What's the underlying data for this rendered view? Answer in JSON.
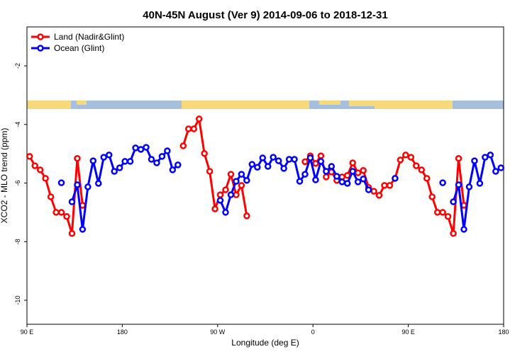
{
  "chart_data": {
    "type": "line",
    "title": "40N-45N August (Ver 9)   2014-09-06 to 2018-12-31",
    "x_label": "Longitude (deg E)",
    "y_label": "XCO2 - MLO trend (ppm)",
    "x": [
      92.5,
      97.5,
      102.5,
      107.5,
      112.5,
      117.5,
      122.5,
      127.5,
      132.5,
      137.5,
      142.5,
      147.5,
      152.5,
      157.5,
      162.5,
      167.5,
      172.5,
      177.5,
      182.5,
      187.5,
      192.5,
      197.5,
      202.5,
      207.5,
      212.5,
      217.5,
      222.5,
      227.5,
      232.5,
      237.5,
      242.5,
      247.5,
      252.5,
      257.5,
      262.5,
      267.5,
      272.5,
      277.5,
      282.5,
      287.5,
      292.5,
      297.5,
      302.5,
      307.5,
      312.5,
      317.5,
      322.5,
      327.5,
      332.5,
      337.5,
      342.5,
      347.5,
      352.5,
      357.5,
      362.5,
      367.5,
      372.5,
      377.5,
      382.5,
      387.5,
      392.5,
      397.5,
      402.5,
      407.5,
      412.5,
      417.5,
      422.5,
      427.5,
      432.5,
      437.5,
      442.5,
      447.5,
      452.5,
      457.5,
      462.5,
      467.5,
      472.5,
      477.5,
      482.5,
      487.5,
      492.5,
      497.5,
      502.5,
      507.5,
      512.5,
      517.5,
      522.5,
      527.5,
      532.5,
      537.5
    ],
    "series": [
      {
        "name": "Land (Nadir&Glint)",
        "color": "#ff0000",
        "values": [
          -5.09,
          -5.41,
          -5.55,
          -5.84,
          -6.47,
          -7.0,
          -7.0,
          -7.14,
          -7.72,
          -5.16,
          -6.76,
          null,
          null,
          null,
          null,
          null,
          null,
          null,
          null,
          null,
          null,
          null,
          null,
          null,
          null,
          null,
          null,
          null,
          null,
          -4.73,
          -4.15,
          -4.15,
          -3.81,
          -4.99,
          -5.6,
          -6.88,
          -6.4,
          -6.23,
          -5.7,
          -6.4,
          -6.08,
          -7.12,
          null,
          null,
          null,
          null,
          null,
          null,
          null,
          null,
          null,
          null,
          -5.27,
          -5.07,
          -5.33,
          -5.07,
          -5.79,
          -5.62,
          -5.91,
          -5.79,
          -5.74,
          -5.31,
          -5.65,
          -5.57,
          -6.15,
          -6.28,
          -6.42,
          -6.08,
          -6.08,
          -5.84,
          -5.21,
          -5.04,
          -5.12,
          -5.41,
          -5.55,
          -5.84,
          -6.47,
          -7.0,
          -7.0,
          -7.14,
          -7.72,
          -5.16,
          -6.76,
          null,
          null,
          null,
          null,
          null,
          null,
          null
        ]
      },
      {
        "name": "Ocean (Glint)",
        "color": "#0000ff",
        "values": [
          null,
          null,
          null,
          null,
          null,
          null,
          -5.99,
          null,
          -6.64,
          -6.06,
          -7.58,
          -6.13,
          -5.24,
          -6.01,
          -5.12,
          -5.04,
          -5.6,
          -5.48,
          -5.26,
          -5.26,
          -4.8,
          -4.85,
          -4.78,
          -5.19,
          -5.31,
          -5.09,
          -4.9,
          -5.55,
          -5.38,
          null,
          null,
          null,
          null,
          null,
          null,
          null,
          -6.59,
          -7.0,
          -6.4,
          -5.94,
          -5.7,
          -5.91,
          -5.36,
          -5.46,
          -5.14,
          -5.43,
          -5.12,
          -5.24,
          -5.5,
          -5.19,
          -5.19,
          -5.94,
          -5.7,
          -5.14,
          -5.89,
          -5.26,
          -5.6,
          -5.43,
          -5.77,
          -5.96,
          -6.01,
          -5.6,
          -5.96,
          -5.86,
          -6.23,
          null,
          null,
          null,
          null,
          -5.84,
          null,
          null,
          null,
          null,
          null,
          null,
          null,
          null,
          -5.99,
          null,
          -6.64,
          -6.06,
          -7.58,
          -6.13,
          -5.24,
          -6.01,
          -5.12,
          -5.04,
          -5.6,
          -5.48
        ]
      }
    ],
    "xlim": [
      90,
      540
    ],
    "ylim": [
      -10.82,
      -0.67
    ],
    "xticks": [
      {
        "value": 90,
        "label": "90 E"
      },
      180,
      {
        "value": 270,
        "label": "90 W"
      },
      {
        "value": 360,
        "label": "0"
      },
      {
        "value": 450,
        "label": "90 E"
      },
      {
        "value": 540,
        "label": "180"
      }
    ],
    "yticks": [
      -2,
      -4,
      -6,
      -8,
      -10
    ],
    "legend": "top-left"
  }
}
